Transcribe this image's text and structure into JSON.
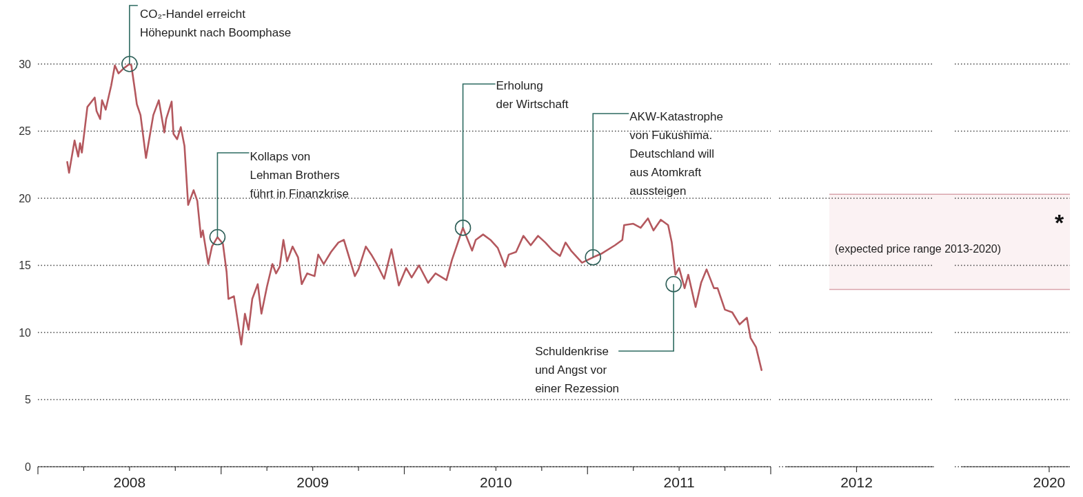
{
  "chart_data": [
    {
      "type": "line",
      "color": "#b4585e",
      "grid": "y",
      "ylim": [
        0,
        30
      ],
      "yticks": [
        0,
        5,
        10,
        15,
        20,
        25,
        30
      ],
      "xlim": [
        2008,
        2012
      ],
      "xticks": [
        {
          "value": 2008,
          "label": null
        },
        {
          "value": 2008.25,
          "label": null
        },
        {
          "value": 2008.5,
          "label": "2008"
        },
        {
          "value": 2008.75,
          "label": null
        },
        {
          "value": 2009,
          "label": null
        },
        {
          "value": 2009.25,
          "label": null
        },
        {
          "value": 2009.5,
          "label": "2009"
        },
        {
          "value": 2009.75,
          "label": null
        },
        {
          "value": 2010,
          "label": null
        },
        {
          "value": 2010.25,
          "label": null
        },
        {
          "value": 2010.5,
          "label": "2010"
        },
        {
          "value": 2010.75,
          "label": null
        },
        {
          "value": 2011,
          "label": null
        },
        {
          "value": 2011.25,
          "label": null
        },
        {
          "value": 2011.5,
          "label": "2011"
        },
        {
          "value": 2011.75,
          "label": null
        },
        {
          "value": 2012,
          "label": null
        }
      ],
      "x": [
        2008.16,
        2008.17,
        2008.2,
        2008.22,
        2008.23,
        2008.24,
        2008.27,
        2008.31,
        2008.32,
        2008.34,
        2008.35,
        2008.37,
        2008.4,
        2008.42,
        2008.44,
        2008.47,
        2008.5,
        2008.51,
        2008.53,
        2008.54,
        2008.56,
        2008.59,
        2008.61,
        2008.63,
        2008.66,
        2008.69,
        2008.7,
        2008.73,
        2008.74,
        2008.76,
        2008.78,
        2008.8,
        2008.82,
        2008.85,
        2008.87,
        2008.89,
        2008.9,
        2008.93,
        2008.95,
        2008.98,
        2009.01,
        2009.03,
        2009.04,
        2009.07,
        2009.11,
        2009.13,
        2009.15,
        2009.17,
        2009.2,
        2009.22,
        2009.25,
        2009.28,
        2009.3,
        2009.32,
        2009.34,
        2009.36,
        2009.39,
        2009.42,
        2009.44,
        2009.47,
        2009.51,
        2009.53,
        2009.56,
        2009.6,
        2009.64,
        2009.67,
        2009.69,
        2009.73,
        2009.75,
        2009.79,
        2009.82,
        2009.85,
        2009.89,
        2009.93,
        2009.97,
        2010.01,
        2010.04,
        2010.08,
        2010.13,
        2010.17,
        2010.23,
        2010.26,
        2010.3,
        2010.32,
        2010.37,
        2010.39,
        2010.43,
        2010.47,
        2010.51,
        2010.55,
        2010.57,
        2010.61,
        2010.65,
        2010.69,
        2010.73,
        2010.77,
        2010.81,
        2010.85,
        2010.88,
        2010.91,
        2010.97,
        2011.03,
        2011.08,
        2011.15,
        2011.19,
        2011.2,
        2011.25,
        2011.29,
        2011.33,
        2011.36,
        2011.4,
        2011.44,
        2011.46,
        2011.48,
        2011.5,
        2011.53,
        2011.55,
        2011.59,
        2011.62,
        2011.65,
        2011.69,
        2011.71,
        2011.75,
        2011.79,
        2011.83,
        2011.87,
        2011.89,
        2011.92,
        2011.95
      ],
      "values": [
        22.7,
        21.9,
        24.3,
        23.1,
        24.1,
        23.4,
        26.8,
        27.5,
        26.5,
        25.9,
        27.3,
        26.6,
        28.4,
        29.9,
        29.3,
        29.7,
        30.0,
        29.9,
        28.0,
        27.0,
        26.2,
        23.0,
        24.6,
        26.2,
        27.3,
        24.9,
        25.9,
        27.2,
        24.8,
        24.4,
        25.3,
        23.9,
        19.5,
        20.6,
        19.8,
        17.1,
        17.6,
        15.1,
        16.4,
        17.1,
        16.6,
        14.5,
        12.5,
        12.7,
        9.1,
        11.4,
        10.2,
        12.5,
        13.6,
        11.4,
        13.4,
        15.1,
        14.4,
        14.9,
        16.9,
        15.3,
        16.4,
        15.6,
        13.6,
        14.4,
        14.2,
        15.8,
        15.1,
        16.0,
        16.7,
        16.9,
        16.0,
        14.2,
        14.7,
        16.4,
        15.8,
        15.1,
        14.0,
        16.2,
        13.5,
        14.8,
        14.1,
        15.0,
        13.7,
        14.4,
        13.9,
        15.4,
        17.0,
        17.8,
        16.1,
        16.9,
        17.3,
        16.9,
        16.3,
        14.9,
        15.8,
        16.0,
        17.2,
        16.5,
        17.2,
        16.7,
        16.1,
        15.7,
        16.7,
        16.1,
        15.2,
        15.6,
        15.9,
        16.5,
        16.9,
        18.0,
        18.1,
        17.8,
        18.5,
        17.6,
        18.4,
        18.0,
        16.7,
        14.3,
        14.8,
        13.3,
        14.3,
        11.9,
        13.7,
        14.7,
        13.3,
        13.3,
        11.7,
        11.5,
        10.6,
        11.1,
        9.6,
        8.9,
        7.2
      ],
      "annotations": [
        {
          "text": "CO₂-Handel erreicht\nHöhepunkt nach Boomphase",
          "x": 2008.5,
          "y": 30.0
        },
        {
          "text": "Kollaps von\nLehman Brothers\nführt in Finanzkrise",
          "x": 2008.98,
          "y": 17.1
        },
        {
          "text": "Erholung\nder Wirtschaft",
          "x": 2010.32,
          "y": 17.8
        },
        {
          "text": "AKW-Katastrophe\nvon Fukushima.\nDeutschland will\naus Atomkraft\naussteigen",
          "x": 2011.03,
          "y": 15.6
        },
        {
          "text": "Schuldenkrise\nund Angst vor\neiner Rezession",
          "x": 2011.47,
          "y": 13.6
        }
      ]
    },
    {
      "type": "line",
      "categories": [
        "2012",
        "2020"
      ],
      "values": [
        null,
        null
      ],
      "grid": "y",
      "tick_labels": "x",
      "ylim": [
        0,
        30
      ],
      "yticks": [
        0,
        5,
        10,
        15,
        20,
        25,
        30
      ],
      "bands": [
        {
          "axis": "y",
          "from": 13.2,
          "to": 20.3,
          "label": "(expected price range 2013-2020)",
          "color": "#fbf2f3"
        }
      ],
      "annotations": [
        "*"
      ]
    }
  ]
}
